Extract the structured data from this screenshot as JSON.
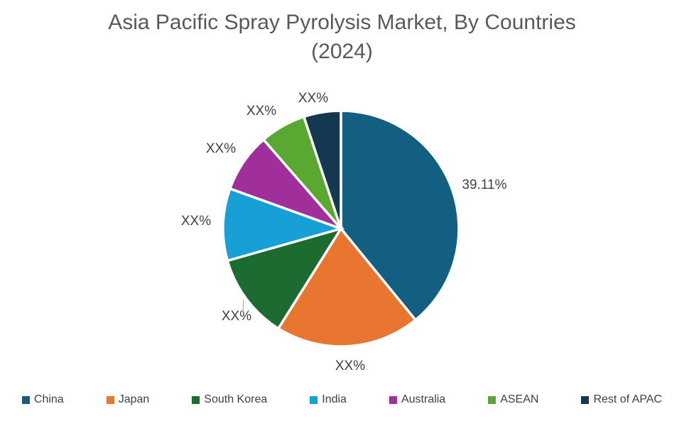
{
  "chart": {
    "title_line1": "Asia Pacific Spray Pyrolysis Market, By Countries",
    "title_line2": "(2024)"
  },
  "chart_data": {
    "type": "pie",
    "title": "Asia Pacific Spray Pyrolysis Market, By Countries (2024)",
    "categories": [
      "China",
      "Japan",
      "South Korea",
      "India",
      "Australia",
      "ASEAN",
      "Rest of APAC"
    ],
    "values": [
      39.11,
      19.8,
      11.7,
      9.9,
      8.1,
      6.3,
      5.09
    ],
    "values_estimated_from_angles": true,
    "display_labels": [
      "39.11%",
      "XX%",
      "XX%",
      "XX%",
      "XX%",
      "XX%",
      "XX%"
    ],
    "colors": [
      "#135f82",
      "#e97630",
      "#1c6b30",
      "#189fd6",
      "#a02f9b",
      "#58a832",
      "#14384f"
    ],
    "start_angle_deg": 0,
    "direction": "clockwise",
    "legend_position": "bottom",
    "background_color": "#ffffff",
    "title_color": "#595959",
    "label_color": "#404040"
  }
}
